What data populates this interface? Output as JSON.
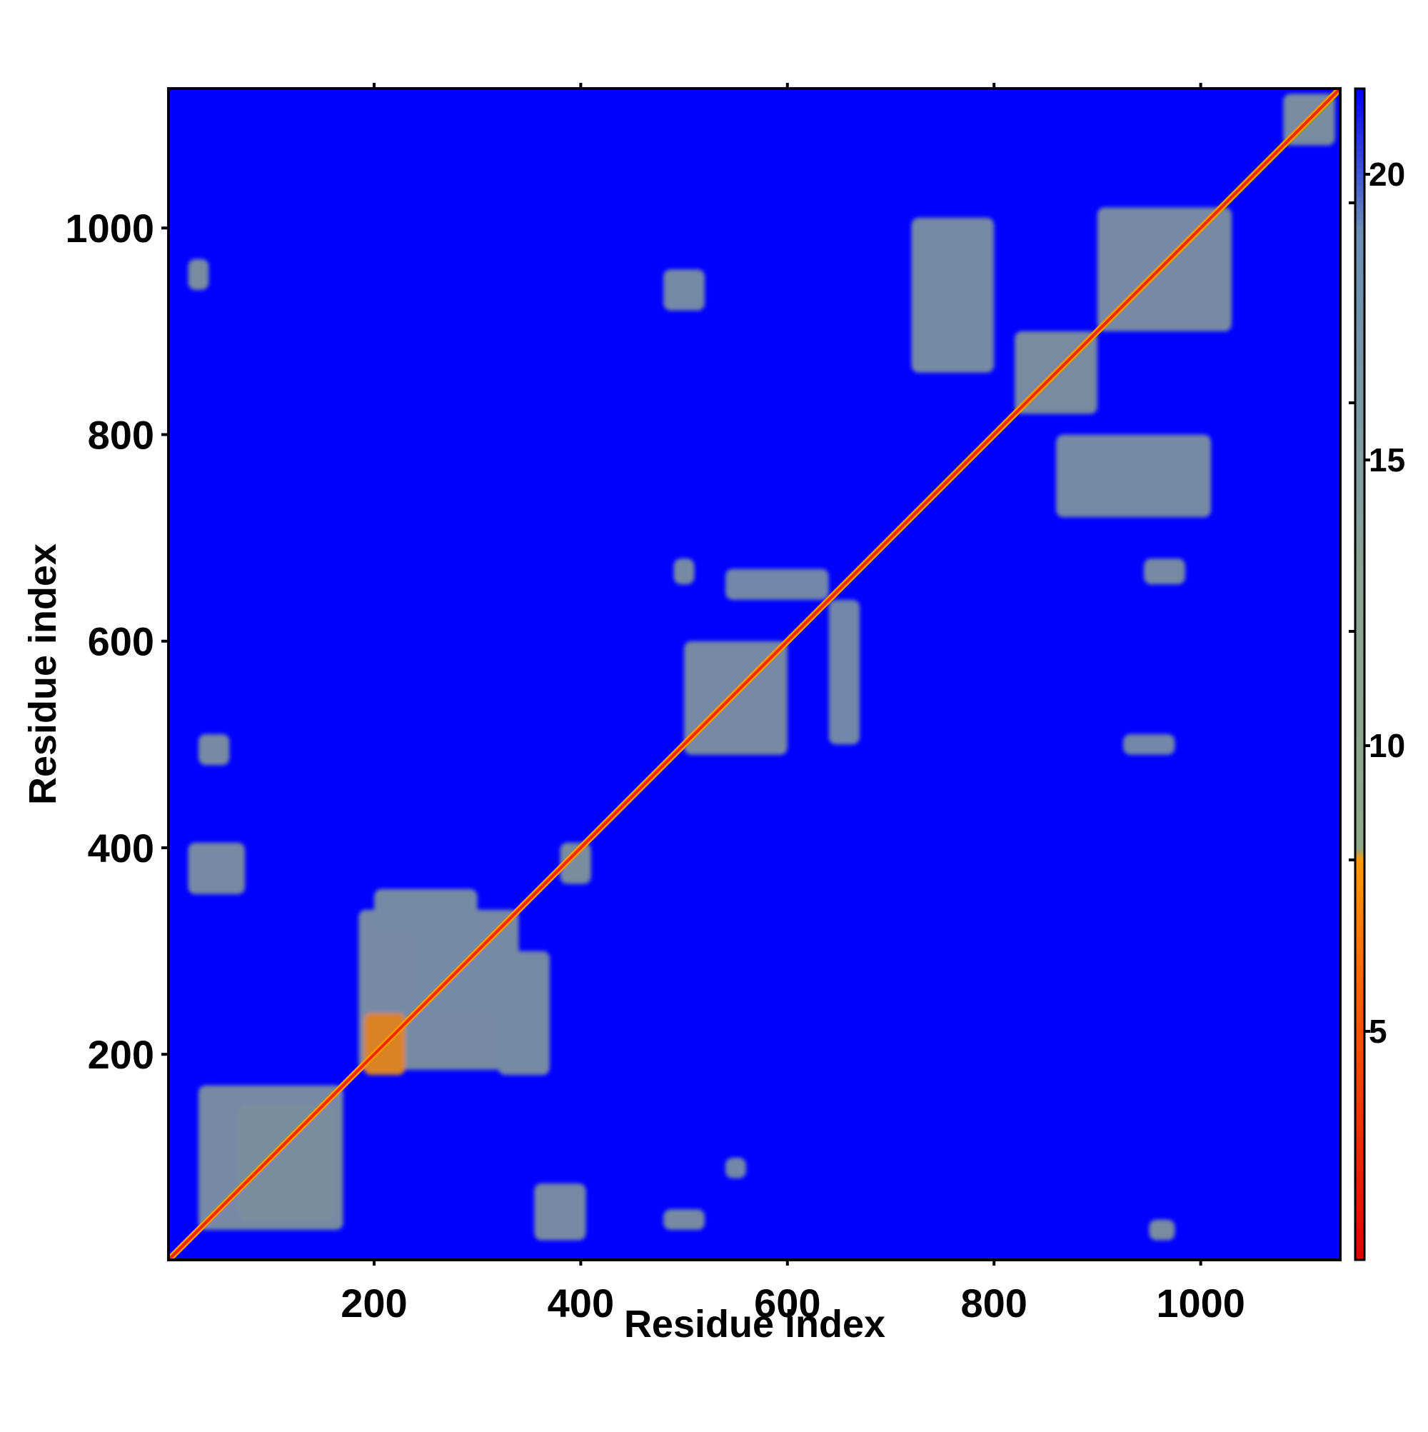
{
  "chart_data": {
    "type": "heatmap",
    "title": "",
    "xlabel": "Residue index",
    "ylabel": "Residue index",
    "xlim": [
      1,
      1135
    ],
    "ylim": [
      1,
      1135
    ],
    "x_ticks": [
      200,
      400,
      600,
      800,
      1000
    ],
    "y_ticks": [
      200,
      400,
      600,
      800,
      1000
    ],
    "minor_ticks": [
      200,
      400,
      600,
      800,
      1000
    ],
    "colorbar": {
      "range": [
        1,
        21.5
      ],
      "ticks": [
        5,
        10,
        15,
        20
      ],
      "minor_ticks": [
        8,
        12,
        16,
        19.5
      ],
      "colors": [
        {
          "value": 1,
          "color": "#e60000"
        },
        {
          "value": 6,
          "color": "#ff6600"
        },
        {
          "value": 8,
          "color": "#ff9a00"
        },
        {
          "value": 8.2,
          "color": "#8fa88a"
        },
        {
          "value": 13,
          "color": "#8aa395"
        },
        {
          "value": 19,
          "color": "#6b8fb4"
        },
        {
          "value": 21.5,
          "color": "#0000ff"
        }
      ]
    },
    "background_value": 21.5,
    "diagonal": {
      "from": 1,
      "to": 1135,
      "value": 3
    },
    "contact_regions": [
      {
        "x": [
          30,
          170
        ],
        "y": [
          30,
          170
        ],
        "value": 12
      },
      {
        "x": [
          70,
          160
        ],
        "y": [
          40,
          150
        ],
        "value": 9
      },
      {
        "x": [
          185,
          340
        ],
        "y": [
          185,
          340
        ],
        "value": 12
      },
      {
        "x": [
          190,
          230
        ],
        "y": [
          180,
          240
        ],
        "value": 8
      },
      {
        "x": [
          240,
          340
        ],
        "y": [
          240,
          320
        ],
        "value": 13
      },
      {
        "x": [
          500,
          600
        ],
        "y": [
          490,
          600
        ],
        "value": 12
      },
      {
        "x": [
          720,
          800
        ],
        "y": [
          860,
          1010
        ],
        "value": 13
      },
      {
        "x": [
          860,
          1010
        ],
        "y": [
          720,
          800
        ],
        "value": 13
      },
      {
        "x": [
          900,
          1030
        ],
        "y": [
          900,
          1020
        ],
        "value": 12
      },
      {
        "x": [
          820,
          900
        ],
        "y": [
          820,
          900
        ],
        "value": 11
      },
      {
        "x": [
          1080,
          1130
        ],
        "y": [
          1080,
          1130
        ],
        "value": 11
      },
      {
        "x": [
          20,
          75
        ],
        "y": [
          355,
          405
        ],
        "value": 12
      },
      {
        "x": [
          355,
          405
        ],
        "y": [
          20,
          75
        ],
        "value": 12
      },
      {
        "x": [
          380,
          410
        ],
        "y": [
          365,
          405
        ],
        "value": 10
      },
      {
        "x": [
          200,
          300
        ],
        "y": [
          320,
          360
        ],
        "value": 13
      },
      {
        "x": [
          320,
          370
        ],
        "y": [
          180,
          300
        ],
        "value": 13
      },
      {
        "x": [
          640,
          670
        ],
        "y": [
          500,
          640
        ],
        "value": 14
      },
      {
        "x": [
          540,
          640
        ],
        "y": [
          640,
          670
        ],
        "value": 14
      },
      {
        "x": [
          925,
          975
        ],
        "y": [
          490,
          510
        ],
        "value": 14
      },
      {
        "x": [
          480,
          520
        ],
        "y": [
          30,
          50
        ],
        "value": 12
      },
      {
        "x": [
          30,
          60
        ],
        "y": [
          480,
          510
        ],
        "value": 12
      },
      {
        "x": [
          20,
          40
        ],
        "y": [
          940,
          970
        ],
        "value": 11
      },
      {
        "x": [
          950,
          975
        ],
        "y": [
          20,
          40
        ],
        "value": 11
      },
      {
        "x": [
          480,
          520
        ],
        "y": [
          920,
          960
        ],
        "value": 13
      },
      {
        "x": [
          540,
          560
        ],
        "y": [
          80,
          100
        ],
        "value": 14
      },
      {
        "x": [
          490,
          510
        ],
        "y": [
          655,
          680
        ],
        "value": 12
      },
      {
        "x": [
          945,
          985
        ],
        "y": [
          655,
          680
        ],
        "value": 12
      }
    ]
  }
}
